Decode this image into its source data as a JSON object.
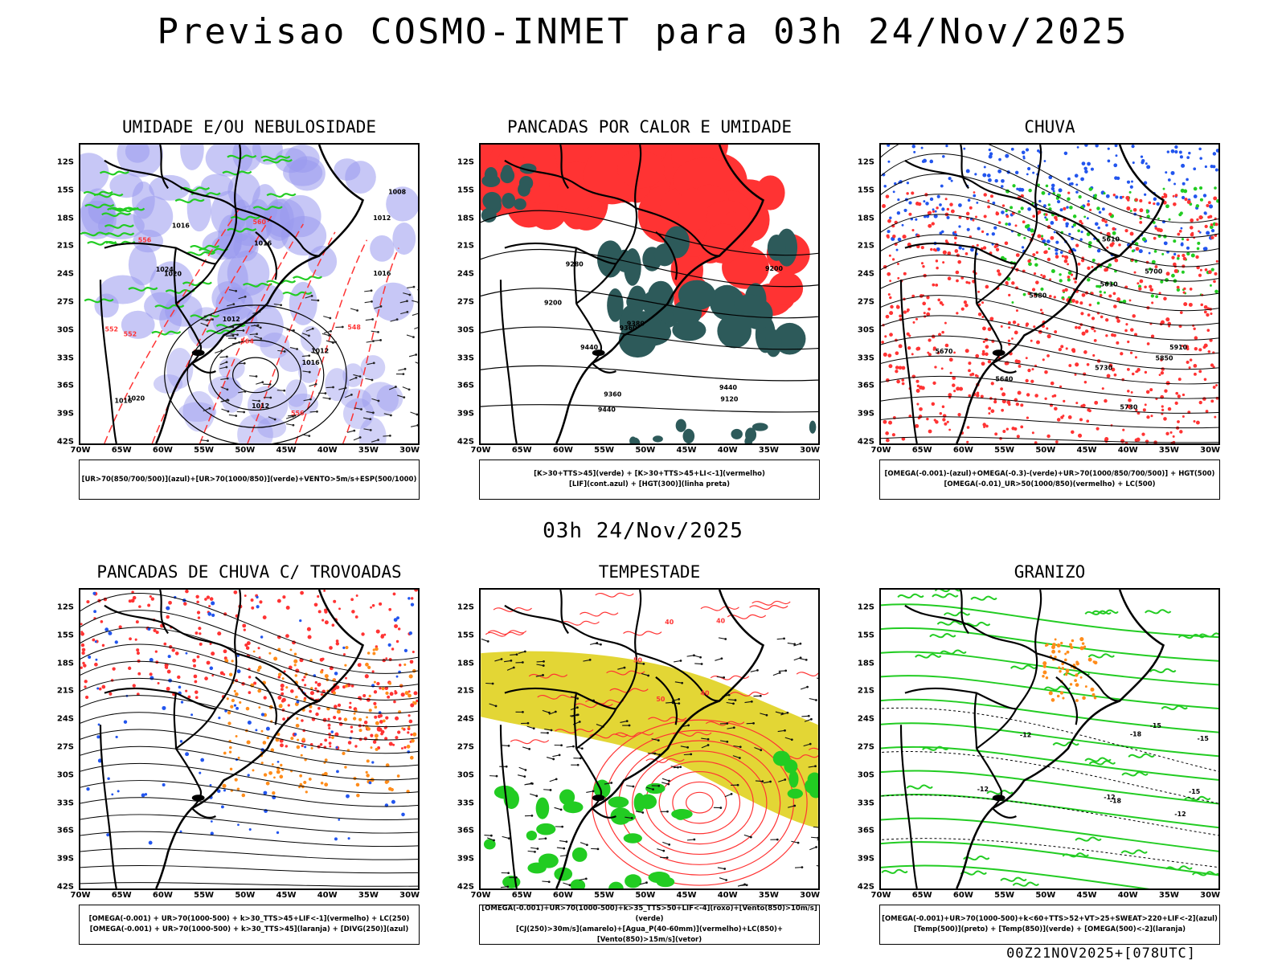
{
  "title": "Previsao COSMO-INMET  para 03h 24/Nov/2025",
  "mid_time": "03h 24/Nov/2025",
  "footer": "00Z21NOV2025+[078UTC]",
  "lat_ticks": [
    "12S",
    "15S",
    "18S",
    "21S",
    "24S",
    "27S",
    "30S",
    "33S",
    "36S",
    "39S",
    "42S"
  ],
  "lon_ticks": [
    "70W",
    "65W",
    "60W",
    "55W",
    "50W",
    "45W",
    "40W",
    "35W",
    "30W"
  ],
  "panels": [
    {
      "title": "UMIDADE E/OU NEBULOSIDADE",
      "legend": [
        "[UR>70(850/700/500)](azul)+[UR>70(1000/850)](verde)+VENTO>5m/s+ESP(500/1000)"
      ],
      "contour_labels": [
        "1012",
        "1012",
        "1016",
        "1016",
        "1016",
        "1016",
        "1020",
        "1020",
        "1024",
        "1012",
        "1008",
        "1012",
        "1016",
        "564",
        "560",
        "556",
        "552",
        "548",
        "552",
        "556"
      ]
    },
    {
      "title": "PANCADAS POR CALOR E UMIDADE",
      "legend": [
        "[K>30+TTS>45](verde) + [K>30+TTS>45+LI<-1](vermelho)",
        "[LIF](cont.azul) + [HGT(300)](linha preta)"
      ],
      "contour_labels": [
        "9440",
        "9440",
        "9440",
        "9360",
        "9380",
        "9200",
        "9120",
        "9360",
        "9200",
        "9280"
      ]
    },
    {
      "title": "CHUVA",
      "legend": [
        "[OMEGA(-0.001)-(azul)+OMEGA(-0.3)-(verde)+UR>70(1000/850/700/500)] + HGT(500)",
        "[OMEGA(-0.01)_UR>50(1000/850)(vermelho) + LC(500)"
      ],
      "contour_labels": [
        "5730",
        "5670",
        "5640",
        "5610",
        "5580",
        "5850",
        "5910",
        "5730",
        "5700",
        "5610"
      ]
    },
    {
      "title": "PANCADAS DE CHUVA C/ TROVOADAS",
      "legend": [
        "[OMEGA(-0.001) + UR>70(1000-500) + k>30_TTS>45+LIF<-1](vermelho) + LC(250)",
        "[OMEGA(-0.001) + UR>70(1000-500) + k>30_TTS>45](laranja) + [DIVG(250)](azul)"
      ],
      "contour_labels": []
    },
    {
      "title": "TEMPESTADE",
      "legend": [
        "[OMEGA(-0.001)+UR>70(1000-500)+k>35_TTS>50+LIF<-4](roxo)+[Vento(850)>10m/s](verde)",
        "[CJ(250)>30m/s](amarelo)+[Agua_P(40-60mm)](vermelho)+LC(850)+[Vento(850)>15m/s](vetor)"
      ],
      "contour_labels": [
        "40",
        "50",
        "40",
        "40",
        "50"
      ]
    },
    {
      "title": "GRANIZO",
      "legend": [
        "[OMEGA(-0.001)+UR>70(1000-500)+k<60+TTS>52+VT>25+SWEAT>220+LIF<-2](azul)",
        "[Temp(500)](preto) + [Temp(850)](verde) + [OMEGA(500)<-2](laranja)"
      ],
      "contour_labels": [
        "-12",
        "-12",
        "-15",
        "-15",
        "-12",
        "-12",
        "-15",
        "-18",
        "-18"
      ]
    }
  ],
  "colors": {
    "blue_humidity": "#9999ee",
    "green": "#22cc22",
    "red": "#ff3333",
    "teal": "#2d5a5a",
    "yellow": "#e3d635",
    "orange": "#ff8c1a",
    "blue": "#2255ee"
  }
}
